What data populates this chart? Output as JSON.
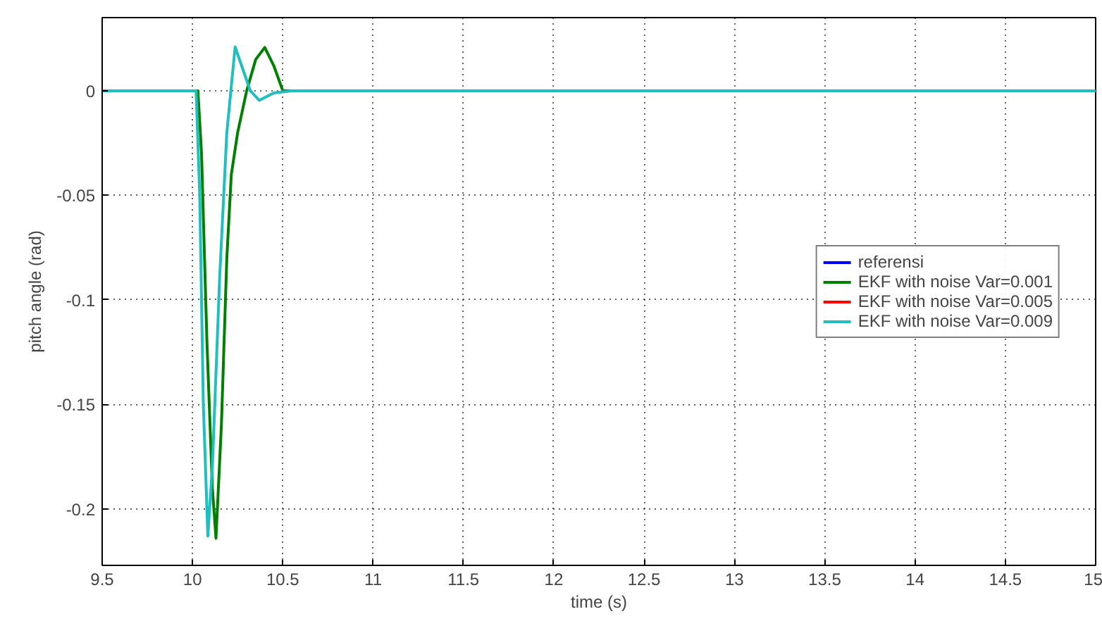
{
  "chart_data": {
    "type": "line",
    "xlabel": "time (s)",
    "ylabel": "pitch angle (rad)",
    "xlim": [
      9.5,
      15
    ],
    "ylim": [
      -0.227,
      0.035
    ],
    "xticks": [
      9.5,
      10,
      10.5,
      11,
      11.5,
      12,
      12.5,
      13,
      13.5,
      14,
      14.5,
      15
    ],
    "yticks": [
      -0.2,
      -0.15,
      -0.1,
      -0.05,
      0
    ],
    "grid": true,
    "legend": "right",
    "line_style": "solid",
    "marker": "none",
    "series": [
      {
        "name": "referensi",
        "color": "#0000ff"
      },
      {
        "name": "EKF with noise Var=0.001",
        "color": "#008000",
        "x": [
          9.5,
          10.03,
          10.05,
          10.08,
          10.11,
          10.13,
          10.16,
          10.19,
          10.215,
          10.25,
          10.3,
          10.35,
          10.4,
          10.45,
          10.5,
          15
        ],
        "values": [
          0,
          0,
          -0.03,
          -0.12,
          -0.19,
          -0.214,
          -0.16,
          -0.08,
          -0.04,
          -0.02,
          0,
          0.015,
          0.0207,
          0.012,
          0,
          0
        ]
      },
      {
        "name": "EKF with noise Var=0.005",
        "color": "#ff0000"
      },
      {
        "name": "EKF with noise Var=0.009",
        "color": "#1fbfbf",
        "x": [
          9.5,
          10.02,
          10.04,
          10.06,
          10.085,
          10.11,
          10.15,
          10.19,
          10.236,
          10.28,
          10.32,
          10.37,
          10.45,
          10.55,
          15
        ],
        "values": [
          0,
          0,
          -0.05,
          -0.15,
          -0.213,
          -0.18,
          -0.09,
          -0.02,
          0.021,
          0.01,
          0,
          -0.0046,
          -0.001,
          0,
          0
        ]
      }
    ]
  }
}
